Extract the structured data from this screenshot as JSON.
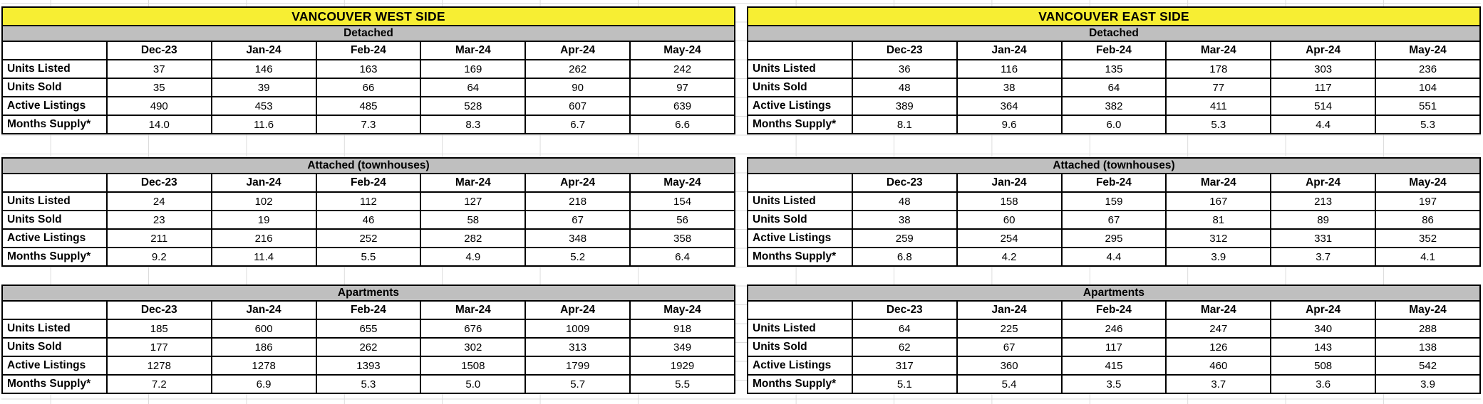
{
  "months": [
    "Dec-23",
    "Jan-24",
    "Feb-24",
    "Mar-24",
    "Apr-24",
    "May-24"
  ],
  "colors": {
    "title_bg": "#F7EE33",
    "band_bg": "#BFBFBF",
    "border": "#000000",
    "gridline": "#DCDCDC"
  },
  "west": {
    "title": "VANCOUVER WEST SIDE",
    "sections": [
      {
        "name": "Detached",
        "rows": [
          {
            "label": "Units Listed",
            "values": [
              "37",
              "146",
              "163",
              "169",
              "262",
              "242"
            ]
          },
          {
            "label": "Units Sold",
            "values": [
              "35",
              "39",
              "66",
              "64",
              "90",
              "97"
            ]
          },
          {
            "label": "Active Listings",
            "values": [
              "490",
              "453",
              "485",
              "528",
              "607",
              "639"
            ]
          },
          {
            "label": "Months Supply*",
            "values": [
              "14.0",
              "11.6",
              "7.3",
              "8.3",
              "6.7",
              "6.6"
            ]
          }
        ]
      },
      {
        "name": "Attached (townhouses)",
        "rows": [
          {
            "label": "Units Listed",
            "values": [
              "24",
              "102",
              "112",
              "127",
              "218",
              "154"
            ]
          },
          {
            "label": "Units Sold",
            "values": [
              "23",
              "19",
              "46",
              "58",
              "67",
              "56"
            ]
          },
          {
            "label": "Active Listings",
            "values": [
              "211",
              "216",
              "252",
              "282",
              "348",
              "358"
            ]
          },
          {
            "label": "Months Supply*",
            "values": [
              "9.2",
              "11.4",
              "5.5",
              "4.9",
              "5.2",
              "6.4"
            ]
          }
        ]
      },
      {
        "name": "Apartments",
        "rows": [
          {
            "label": "Units Listed",
            "values": [
              "185",
              "600",
              "655",
              "676",
              "1009",
              "918"
            ]
          },
          {
            "label": "Units Sold",
            "values": [
              "177",
              "186",
              "262",
              "302",
              "313",
              "349"
            ]
          },
          {
            "label": "Active Listings",
            "values": [
              "1278",
              "1278",
              "1393",
              "1508",
              "1799",
              "1929"
            ]
          },
          {
            "label": "Months Supply*",
            "values": [
              "7.2",
              "6.9",
              "5.3",
              "5.0",
              "5.7",
              "5.5"
            ]
          }
        ]
      }
    ]
  },
  "east": {
    "title": "VANCOUVER EAST SIDE",
    "sections": [
      {
        "name": "Detached",
        "rows": [
          {
            "label": "Units Listed",
            "values": [
              "36",
              "116",
              "135",
              "178",
              "303",
              "236"
            ]
          },
          {
            "label": "Units Sold",
            "values": [
              "48",
              "38",
              "64",
              "77",
              "117",
              "104"
            ]
          },
          {
            "label": "Active Listings",
            "values": [
              "389",
              "364",
              "382",
              "411",
              "514",
              "551"
            ]
          },
          {
            "label": "Months Supply*",
            "values": [
              "8.1",
              "9.6",
              "6.0",
              "5.3",
              "4.4",
              "5.3"
            ]
          }
        ]
      },
      {
        "name": "Attached (townhouses)",
        "rows": [
          {
            "label": "Units Listed",
            "values": [
              "48",
              "158",
              "159",
              "167",
              "213",
              "197"
            ]
          },
          {
            "label": "Units Sold",
            "values": [
              "38",
              "60",
              "67",
              "81",
              "89",
              "86"
            ]
          },
          {
            "label": "Active Listings",
            "values": [
              "259",
              "254",
              "295",
              "312",
              "331",
              "352"
            ]
          },
          {
            "label": "Months Supply*",
            "values": [
              "6.8",
              "4.2",
              "4.4",
              "3.9",
              "3.7",
              "4.1"
            ]
          }
        ]
      },
      {
        "name": "Apartments",
        "rows": [
          {
            "label": "Units Listed",
            "values": [
              "64",
              "225",
              "246",
              "247",
              "340",
              "288"
            ]
          },
          {
            "label": "Units Sold",
            "values": [
              "62",
              "67",
              "117",
              "126",
              "143",
              "138"
            ]
          },
          {
            "label": "Active Listings",
            "values": [
              "317",
              "360",
              "415",
              "460",
              "508",
              "542"
            ]
          },
          {
            "label": "Months Supply*",
            "values": [
              "5.1",
              "5.4",
              "3.5",
              "3.7",
              "3.6",
              "3.9"
            ]
          }
        ]
      }
    ]
  }
}
